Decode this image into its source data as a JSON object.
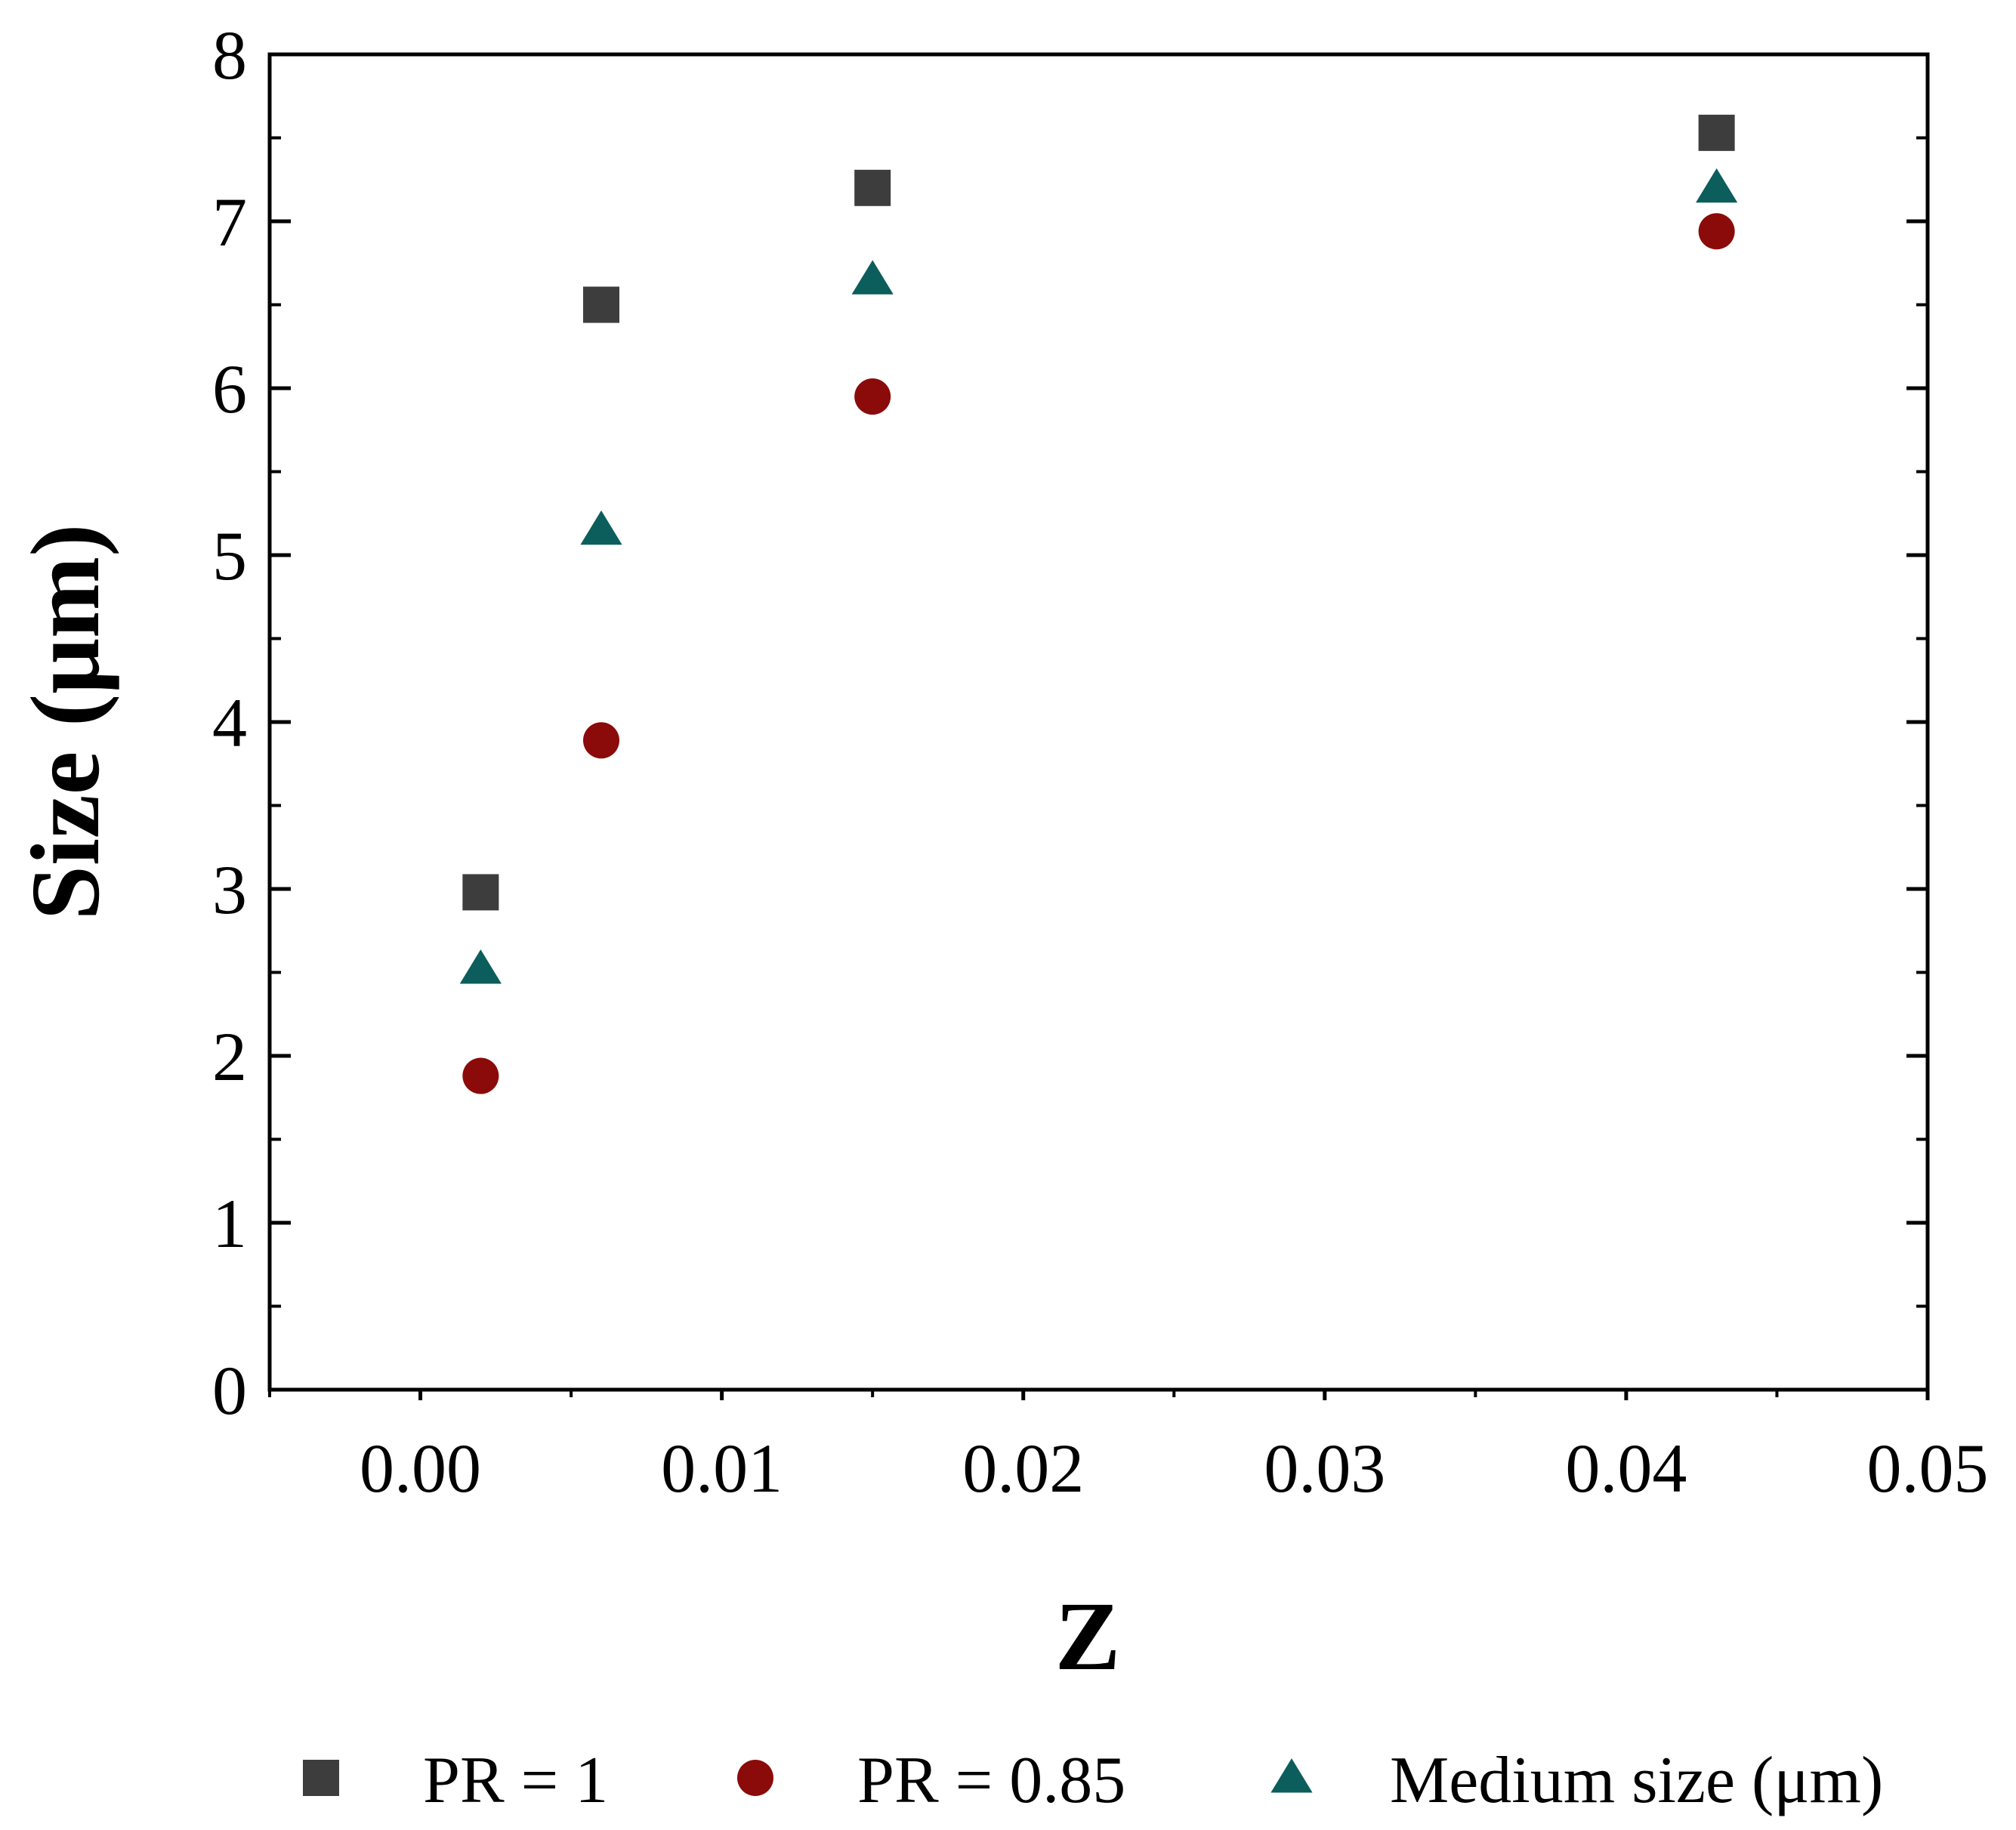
{
  "chart_data": {
    "type": "scatter",
    "title": "",
    "xlabel": "Z",
    "ylabel": "Size (μm)",
    "xlim": [
      -0.005,
      0.05
    ],
    "ylim": [
      0,
      8
    ],
    "xticks": [
      0.0,
      0.01,
      0.02,
      0.03,
      0.04,
      0.05
    ],
    "xtick_labels": [
      "0.00",
      "0.01",
      "0.02",
      "0.03",
      "0.04",
      "0.05"
    ],
    "yticks": [
      0,
      1,
      2,
      3,
      4,
      5,
      6,
      7,
      8
    ],
    "ytick_labels": [
      "0",
      "1",
      "2",
      "3",
      "4",
      "5",
      "6",
      "7",
      "8"
    ],
    "grid": false,
    "legend_position": "bottom",
    "series": [
      {
        "name": "PR = 1",
        "marker": "square",
        "color": "#3d3d3d",
        "x": [
          0.002,
          0.006,
          0.015,
          0.043
        ],
        "y": [
          2.98,
          6.5,
          7.2,
          7.53
        ]
      },
      {
        "name": "PR = 0.85",
        "marker": "circle",
        "color": "#8b0a0a",
        "x": [
          0.002,
          0.006,
          0.015,
          0.043
        ],
        "y": [
          1.88,
          3.89,
          5.95,
          6.94
        ]
      },
      {
        "name": "Medium size (μm)",
        "marker": "triangle",
        "color": "#0b5e5c",
        "x": [
          0.002,
          0.006,
          0.015,
          0.043
        ],
        "y": [
          2.52,
          5.15,
          6.65,
          7.2
        ]
      }
    ]
  }
}
